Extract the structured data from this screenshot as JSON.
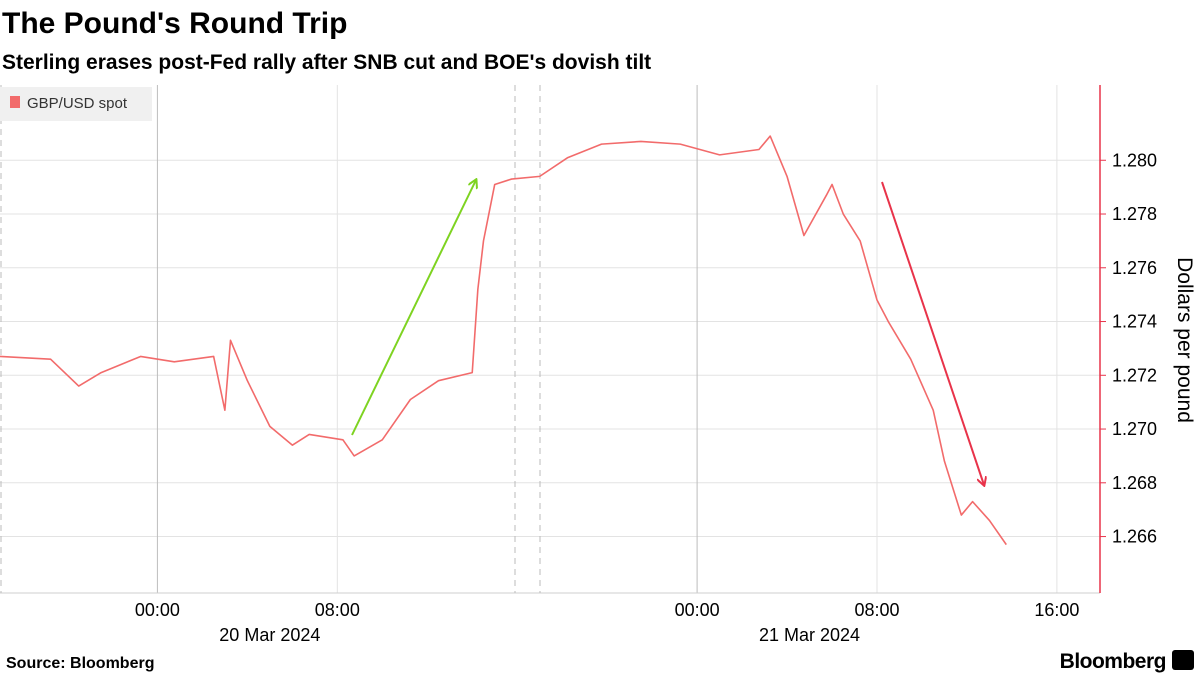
{
  "chart_data": {
    "type": "line",
    "title": "The Pound's Round Trip",
    "subtitle": "Sterling erases post-Fed rally after SNB cut and BOE's dovish tilt",
    "y_axis_label": "Dollars per pound",
    "source": "Source: Bloomberg",
    "logo": "Bloomberg",
    "x": [
      "2024-03-19T17:00",
      "2024-03-19T19:15",
      "2024-03-19T20:30",
      "2024-03-19T21:30",
      "2024-03-19T23:15",
      "2024-03-20T00:45",
      "2024-03-20T02:30",
      "2024-03-20T03:00",
      "2024-03-20T03:15",
      "2024-03-20T04:00",
      "2024-03-20T05:00",
      "2024-03-20T06:00",
      "2024-03-20T06:45",
      "2024-03-20T08:15",
      "2024-03-20T08:45",
      "2024-03-20T10:00",
      "2024-03-20T11:15",
      "2024-03-20T12:30",
      "2024-03-20T14:00",
      "2024-03-20T14:15",
      "2024-03-20T14:30",
      "2024-03-20T15:00",
      "2024-03-20T15:45",
      "2024-03-20T17:00",
      "2024-03-20T18:15",
      "2024-03-20T19:45",
      "2024-03-20T21:30",
      "2024-03-20T23:15",
      "2024-03-21T01:00",
      "2024-03-21T02:45",
      "2024-03-21T03:15",
      "2024-03-21T04:00",
      "2024-03-21T04:45",
      "2024-03-21T05:45",
      "2024-03-21T06:00",
      "2024-03-21T06:30",
      "2024-03-21T07:15",
      "2024-03-21T08:00",
      "2024-03-21T08:30",
      "2024-03-21T09:30",
      "2024-03-21T10:30",
      "2024-03-21T11:00",
      "2024-03-21T11:45",
      "2024-03-21T12:15",
      "2024-03-21T13:00",
      "2024-03-21T13:45"
    ],
    "series": [
      {
        "name": "GBP/USD spot",
        "color": "#f26b6b",
        "values": [
          1.2727,
          1.2726,
          1.2716,
          1.2721,
          1.2727,
          1.2725,
          1.2727,
          1.2707,
          1.2733,
          1.2718,
          1.2701,
          1.2694,
          1.2698,
          1.2696,
          1.269,
          1.2696,
          1.2711,
          1.2718,
          1.2721,
          1.2752,
          1.277,
          1.2791,
          1.2793,
          1.2794,
          1.2801,
          1.2806,
          1.2807,
          1.2806,
          1.2802,
          1.2804,
          1.2809,
          1.2794,
          1.2772,
          1.2787,
          1.2791,
          1.278,
          1.277,
          1.2748,
          1.274,
          1.2726,
          1.2707,
          1.2688,
          1.2668,
          1.2673,
          1.2666,
          1.2657
        ]
      }
    ],
    "xlim": [
      "2024-03-19T17:00",
      "2024-03-21T17:55"
    ],
    "xticks": [
      {
        "value": "2024-03-20T00:00",
        "label": "00:00"
      },
      {
        "value": "2024-03-20T08:00",
        "label": "08:00"
      },
      {
        "value": "2024-03-21T00:00",
        "label": "00:00"
      },
      {
        "value": "2024-03-21T08:00",
        "label": "08:00"
      },
      {
        "value": "2024-03-21T16:00",
        "label": "16:00"
      }
    ],
    "xdate_labels": [
      {
        "value": "2024-03-20T05:00",
        "label": "20 Mar 2024"
      },
      {
        "value": "2024-03-21T05:00",
        "label": "21 Mar 2024"
      }
    ],
    "ylim": [
      1.2639,
      1.2828
    ],
    "yticks": [
      1.266,
      1.268,
      {
        "value": 1.27,
        "label": "1.270"
      },
      1.272,
      1.274,
      1.276,
      1.278,
      {
        "value": 1.28,
        "label": "1.280"
      }
    ],
    "grid": true,
    "legend": "top-left"
  }
}
